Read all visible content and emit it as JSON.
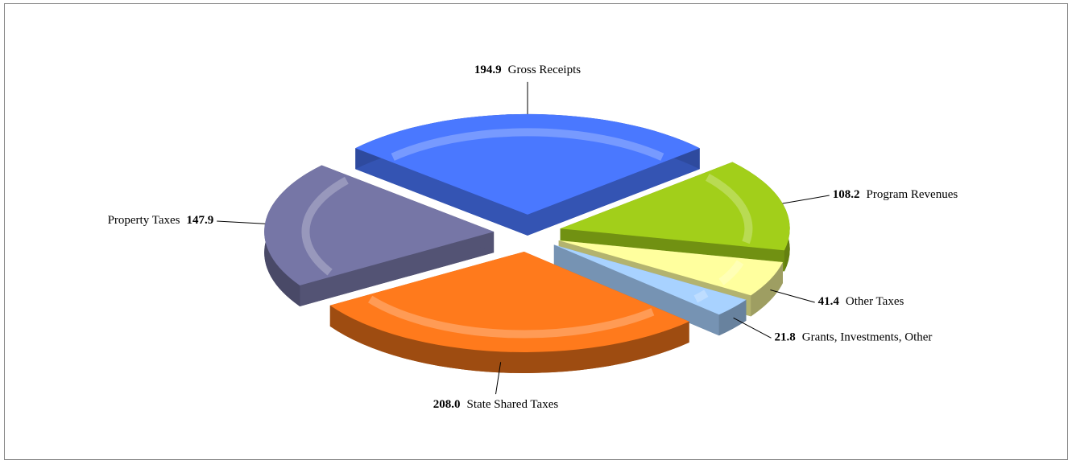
{
  "chart_data": {
    "type": "pie3d",
    "categories": [
      "Gross Receipts",
      "Program Revenues",
      "Other Taxes",
      "Grants, Investments, Other",
      "State Shared Taxes",
      "Property Taxes"
    ],
    "values": [
      194.9,
      108.2,
      41.4,
      21.8,
      208.0,
      147.9
    ],
    "value_labels": [
      "194.9",
      "108.2",
      "41.4",
      "21.8",
      "208.0",
      "147.9"
    ],
    "colors": [
      "#4a78ff",
      "#a2cf1a",
      "#ffff9e",
      "#a8d2ff",
      "#ff7a1c",
      "#7676a6"
    ]
  }
}
